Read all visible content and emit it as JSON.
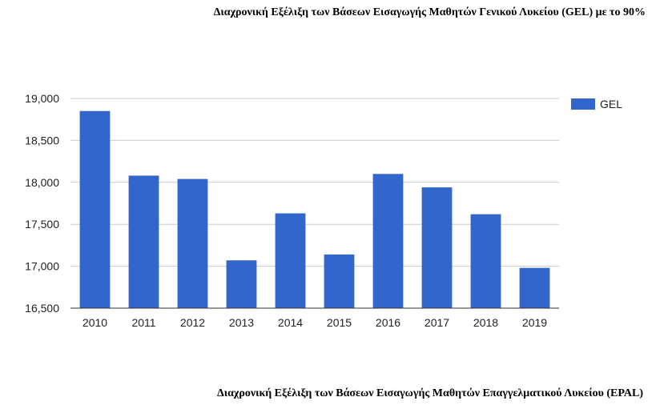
{
  "titles": {
    "top": "Διαχρονική Εξέλιξη των Βάσεων Εισαγωγής Μαθητών Γενικού Λυκείου (GEL) με το 90%",
    "bottom": "Διαχρονική Εξέλιξη των Βάσεων Εισαγωγής Μαθητών Επαγγελματικού  Λυκείου (EPAL)"
  },
  "chart_data": {
    "type": "bar",
    "categories": [
      "2010",
      "2011",
      "2012",
      "2013",
      "2014",
      "2015",
      "2016",
      "2017",
      "2018",
      "2019"
    ],
    "series": [
      {
        "name": "GEL",
        "values": [
          18850,
          18080,
          18040,
          17070,
          17630,
          17140,
          18100,
          17940,
          17620,
          16980
        ],
        "color": "#3366cc"
      }
    ],
    "ylim": [
      16500,
      19000
    ],
    "yticks": [
      16500,
      17000,
      17500,
      18000,
      18500,
      19000
    ],
    "ytick_labels": [
      "16,500",
      "17,000",
      "17,500",
      "18,000",
      "18,500",
      "19,000"
    ],
    "grid": true,
    "legend": "right",
    "xlabel": "",
    "ylabel": ""
  }
}
